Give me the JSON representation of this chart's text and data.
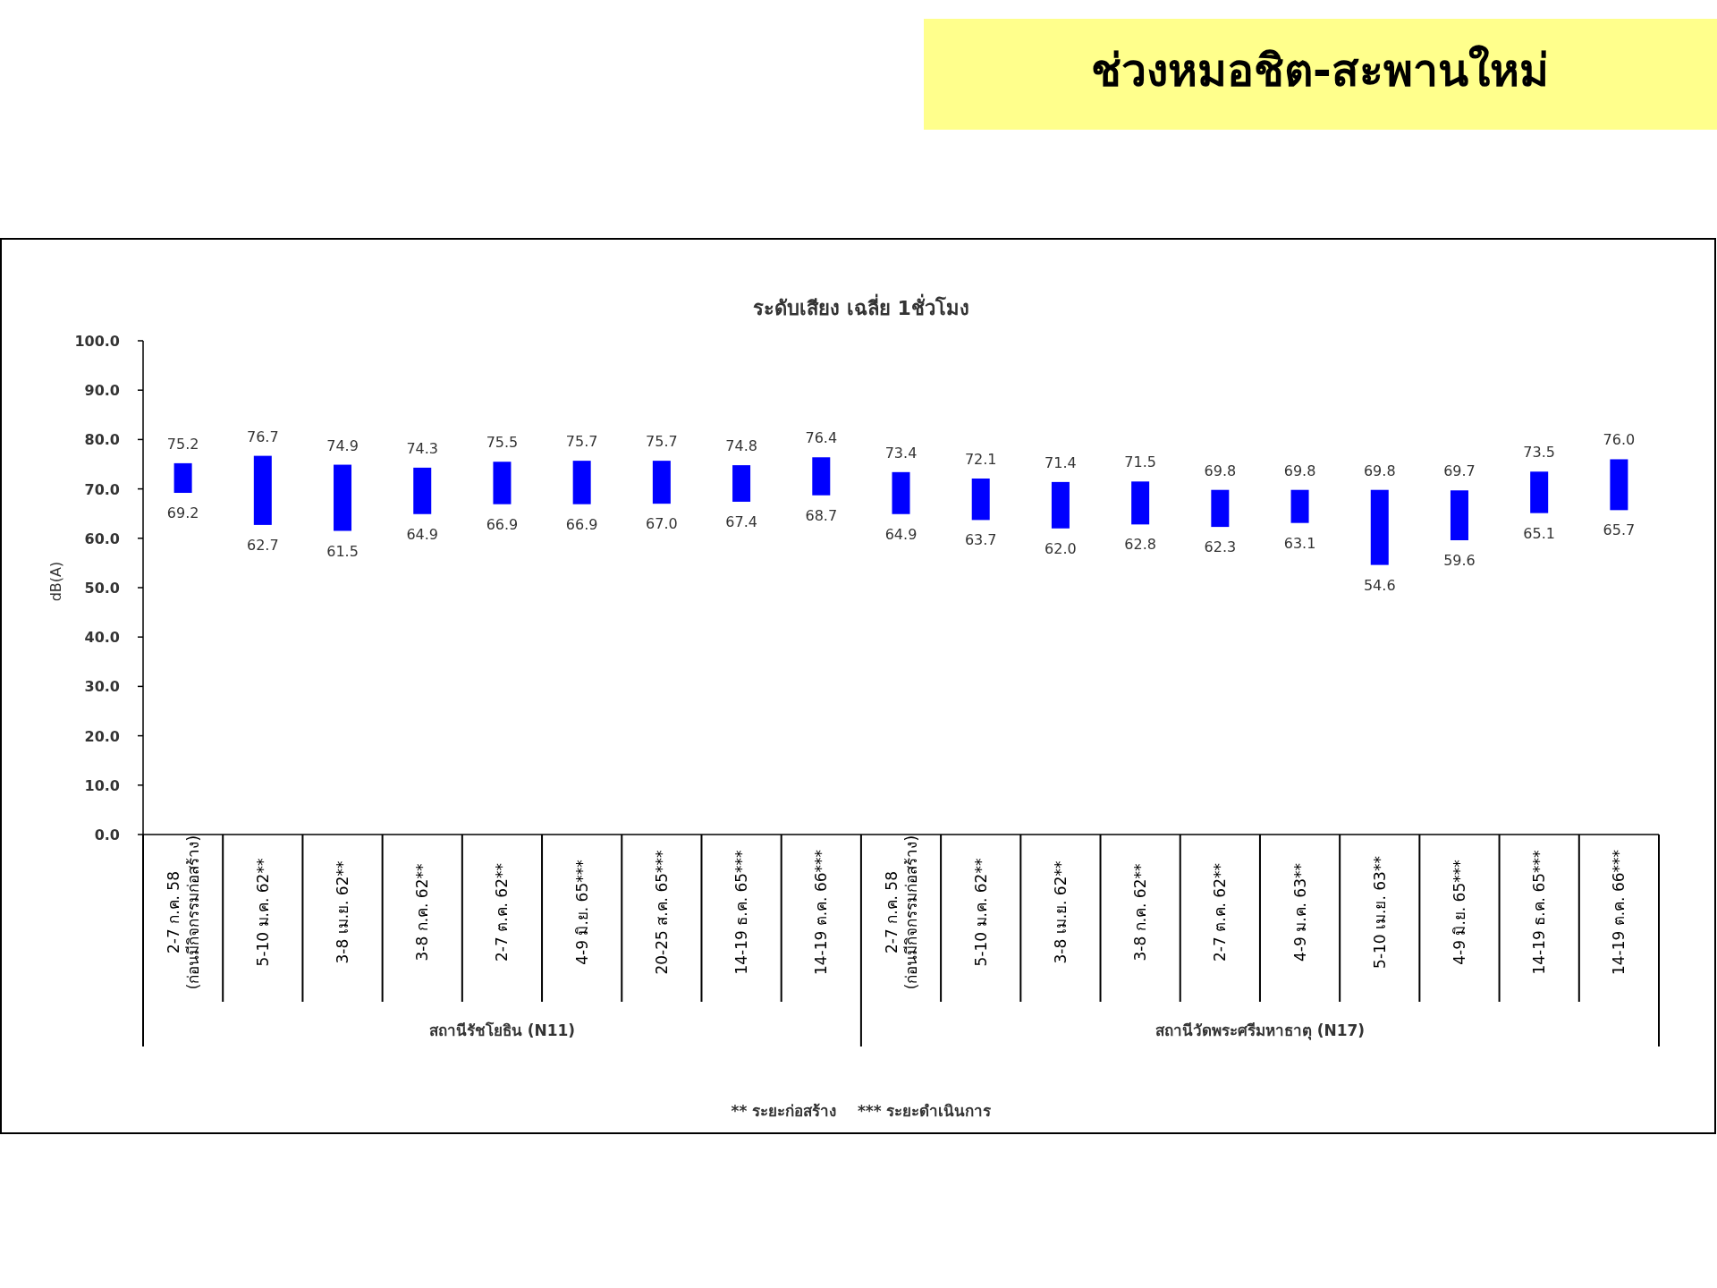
{
  "chart_data": {
    "type": "bar",
    "title": "ช่วงหมอชิต-สะพานใหม่",
    "subtitle": "ระดับเสียง เฉลี่ย 1ชั่วโมง",
    "ylabel": "dB(A)",
    "categories": [
      "2-7 ก.ค. 58\n(ก่อนมีกิจกรรมก่อสร้าง)",
      "5-10 ม.ค. 62**",
      "3-8 เม.ย. 62**",
      "3-8 ก.ค. 62**",
      "2-7 ต.ค. 62**",
      "4-9 มิ.ย. 65***",
      "20-25 ส.ค. 65***",
      "14-19 ธ.ค. 65***",
      "14-19 ต.ค. 66***",
      "2-7 ก.ค. 58\n(ก่อนมีกิจกรรมก่อสร้าง)",
      "5-10 ม.ค. 62**",
      "3-8 เม.ย. 62**",
      "3-8 ก.ค. 62**",
      "2-7 ต.ค. 62**",
      "4-9 ม.ค. 63**",
      "5-10 เม.ย. 63**",
      "4-9 มิ.ย. 65***",
      "14-19 ธ.ค. 65***",
      "14-19 ต.ค. 66***"
    ],
    "base": [
      69.2,
      62.7,
      61.5,
      64.9,
      66.9,
      66.9,
      67.0,
      67.4,
      68.7,
      64.9,
      63.7,
      62.0,
      62.8,
      62.3,
      63.1,
      54.6,
      59.6,
      65.1,
      65.7
    ],
    "values": [
      6.0,
      14.0,
      13.4,
      9.4,
      8.6,
      8.8,
      8.7,
      7.4,
      7.7,
      8.5,
      8.4,
      9.4,
      8.7,
      7.5,
      6.7,
      15.2,
      10.1,
      8.4,
      10.3
    ],
    "value_labels": [
      "75.2",
      "76.7",
      "74.9",
      "74.3",
      "75.5",
      "75.7",
      "75.7",
      "74.8",
      "76.4",
      "73.4",
      "72.1",
      "71.4",
      "71.5",
      "69.8",
      "69.8",
      "69.8",
      "69.7",
      "73.5",
      "76.0"
    ],
    "color": "#0000ff",
    "ylim": [
      0,
      100
    ],
    "yticks": [
      {
        "value": 0,
        "label": "0.0"
      },
      {
        "value": 10,
        "label": "10.0"
      },
      {
        "value": 20,
        "label": "20.0"
      },
      {
        "value": 30,
        "label": "30.0"
      },
      {
        "value": 40,
        "label": "40.0"
      },
      {
        "value": 50,
        "label": "50.0"
      },
      {
        "value": 60,
        "label": "60.0"
      },
      {
        "value": 70,
        "label": "70.0"
      },
      {
        "value": 80,
        "label": "80.0"
      },
      {
        "value": 90,
        "label": "90.0"
      },
      {
        "value": 100,
        "label": "100.0"
      }
    ],
    "annotations": [
      "69.2",
      "62.7",
      "61.5",
      "64.9",
      "66.9",
      "66.9",
      "67.0",
      "67.4",
      "68.7",
      "64.9",
      "63.7",
      "62.0",
      "62.8",
      "62.3",
      "63.1",
      "54.6",
      "59.6",
      "65.1",
      "65.7",
      "สถานีรัชโยธิน (N11)",
      "สถานีวัดพระศรีมหาธาตุ (N17)",
      "** ระยะก่อสร้าง    *** ระยะดำเนินการ"
    ]
  }
}
